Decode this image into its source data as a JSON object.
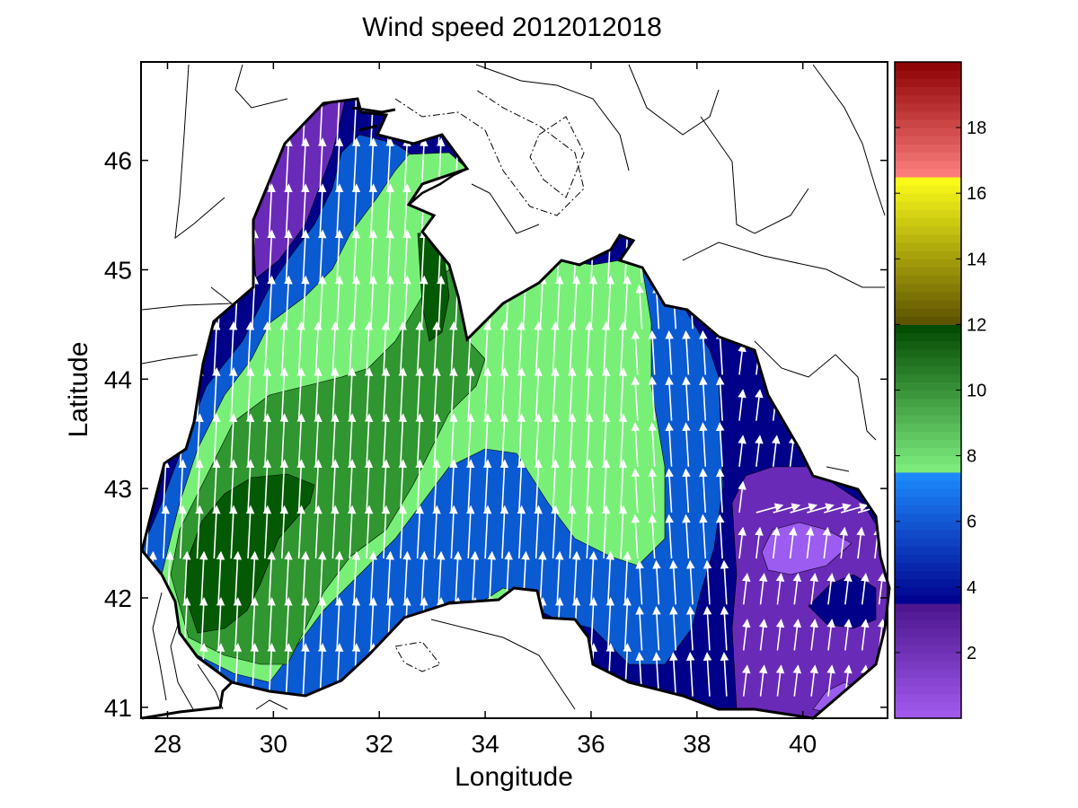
{
  "figure": {
    "title": "Wind speed 2012012018",
    "xlabel": "Longitude",
    "ylabel": "Latitude"
  },
  "chart_data": {
    "type": "heatmap",
    "title": "Wind speed 2012012018",
    "xlabel": "Longitude",
    "ylabel": "Latitude",
    "xlim": [
      27.5,
      41.6
    ],
    "ylim": [
      40.9,
      46.9
    ],
    "xticks": [
      28,
      30,
      32,
      34,
      36,
      38,
      40
    ],
    "yticks": [
      41,
      42,
      43,
      44,
      45,
      46
    ],
    "colorbar": {
      "range": [
        0,
        20
      ],
      "ticks": [
        2,
        4,
        6,
        8,
        10,
        12,
        14,
        16,
        18
      ],
      "bands": [
        {
          "from": 0,
          "to": 3.5,
          "color_low": "#a45cf0",
          "color_high": "#4a148c"
        },
        {
          "from": 3.5,
          "to": 7.5,
          "color_low": "#00008c",
          "color_high": "#1e8cff"
        },
        {
          "from": 7.5,
          "to": 12,
          "color_low": "#80f080",
          "color_high": "#004800"
        },
        {
          "from": 12,
          "to": 16.5,
          "color_low": "#5a5000",
          "color_high": "#ffff1a"
        },
        {
          "from": 16.5,
          "to": 20,
          "color_low": "#ff8080",
          "color_high": "#8c0000"
        }
      ]
    },
    "fill_levels": [
      {
        "speed_range": [
          2,
          3.5
        ],
        "color": "#6a2ab8"
      },
      {
        "speed_range": [
          0.5,
          2
        ],
        "color": "#9c5cf0"
      },
      {
        "speed_range": [
          3.5,
          5
        ],
        "color": "#000088"
      },
      {
        "speed_range": [
          5,
          7.5
        ],
        "color": "#0a5ad2"
      },
      {
        "speed_range": [
          7.5,
          9
        ],
        "color": "#78f078"
      },
      {
        "speed_range": [
          9,
          11
        ],
        "color": "#2f9630"
      },
      {
        "speed_range": [
          11,
          12
        ],
        "color": "#045a04"
      }
    ],
    "prevailing_wind": "southerly, arrows pointing north (north-east arrows near 40.5E 43N)",
    "coastline_color": "#000000",
    "vector_color": "#ffffff"
  }
}
